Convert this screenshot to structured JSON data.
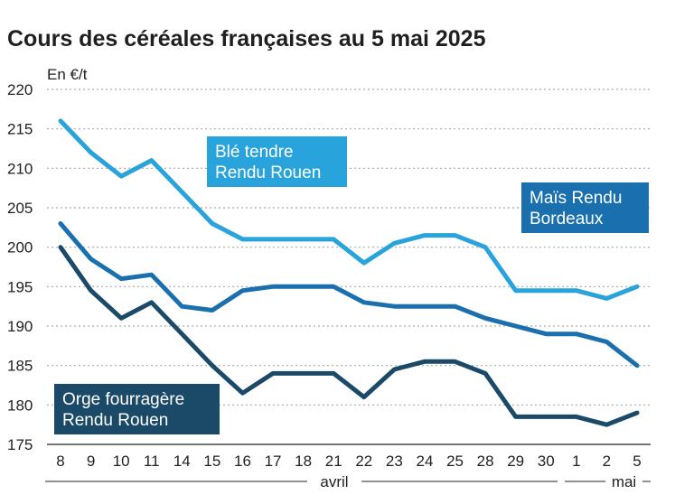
{
  "chart_data": {
    "type": "line",
    "title": "Cours des céréales françaises au 5 mai 2025",
    "ylabel": "En €/t",
    "ylim": [
      175,
      220
    ],
    "yticks": [
      175,
      180,
      185,
      190,
      195,
      200,
      205,
      210,
      215,
      220
    ],
    "categories": [
      "8",
      "9",
      "10",
      "11",
      "14",
      "15",
      "16",
      "17",
      "18",
      "21",
      "22",
      "23",
      "24",
      "25",
      "28",
      "29",
      "30",
      "1",
      "2",
      "5"
    ],
    "month_groups": [
      {
        "label": "avril",
        "from": 0,
        "to": 16
      },
      {
        "label": "mai",
        "from": 17,
        "to": 19
      }
    ],
    "grid": "horizontal-dotted",
    "series": [
      {
        "name_lines": [
          "Blé tendre",
          "Rendu Rouen"
        ],
        "color": "#29a3db",
        "values": [
          216,
          212,
          209,
          211,
          207,
          203,
          201,
          201,
          201,
          201,
          198,
          200.5,
          201.5,
          201.5,
          200,
          194.5,
          194.5,
          194.5,
          193.5,
          195
        ]
      },
      {
        "name_lines": [
          "Maïs Rendu",
          "Bordeaux"
        ],
        "color": "#1a6fae",
        "values": [
          203,
          198.5,
          196,
          196.5,
          192.5,
          192,
          194.5,
          195,
          195,
          195,
          193,
          192.5,
          192.5,
          192.5,
          191,
          190,
          189,
          189,
          188,
          185
        ]
      },
      {
        "name_lines": [
          "Orge fourragère",
          "Rendu Rouen"
        ],
        "color": "#1b4a68",
        "values": [
          200,
          194.5,
          191,
          193,
          189,
          185,
          181.5,
          184,
          184,
          184,
          181,
          184.5,
          185.5,
          185.5,
          184,
          178.5,
          178.5,
          178.5,
          177.5,
          179
        ]
      }
    ]
  }
}
